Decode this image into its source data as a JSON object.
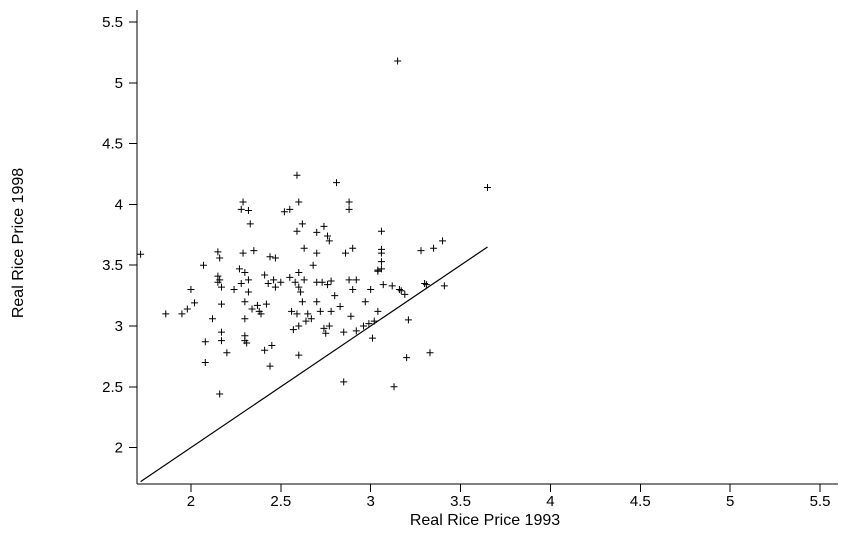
{
  "chart_data": {
    "type": "scatter",
    "xlabel": "Real Rice Price 1993",
    "ylabel": "Real Rice Price 1998",
    "xlim": [
      1.7,
      5.6
    ],
    "ylim": [
      1.7,
      5.6
    ],
    "xticks": [
      2,
      2.5,
      3,
      3.5,
      4,
      4.5,
      5,
      5.5
    ],
    "yticks": [
      2,
      2.5,
      3,
      3.5,
      4,
      4.5,
      5,
      5.5
    ],
    "marker": "+",
    "grid": false,
    "legend": "none",
    "reference_line": {
      "x": [
        1.72,
        3.65
      ],
      "y": [
        1.72,
        3.65
      ]
    },
    "points": [
      [
        1.72,
        3.59
      ],
      [
        1.86,
        3.1
      ],
      [
        1.95,
        3.1
      ],
      [
        1.98,
        3.14
      ],
      [
        2.0,
        3.3
      ],
      [
        2.02,
        3.19
      ],
      [
        2.07,
        3.5
      ],
      [
        2.08,
        2.87
      ],
      [
        2.08,
        2.7
      ],
      [
        2.12,
        3.06
      ],
      [
        2.15,
        3.41
      ],
      [
        2.15,
        3.36
      ],
      [
        2.15,
        3.61
      ],
      [
        2.16,
        3.56
      ],
      [
        2.16,
        3.38
      ],
      [
        2.17,
        3.32
      ],
      [
        2.17,
        2.95
      ],
      [
        2.17,
        2.88
      ],
      [
        2.16,
        2.44
      ],
      [
        2.17,
        3.18
      ],
      [
        2.2,
        2.78
      ],
      [
        2.24,
        3.3
      ],
      [
        2.27,
        3.47
      ],
      [
        2.28,
        3.35
      ],
      [
        2.28,
        3.96
      ],
      [
        2.29,
        4.02
      ],
      [
        2.29,
        3.6
      ],
      [
        2.3,
        3.44
      ],
      [
        2.3,
        3.2
      ],
      [
        2.3,
        3.06
      ],
      [
        2.3,
        2.92
      ],
      [
        2.3,
        2.88
      ],
      [
        2.31,
        2.86
      ],
      [
        2.32,
        3.38
      ],
      [
        2.32,
        3.28
      ],
      [
        2.32,
        3.95
      ],
      [
        2.33,
        3.84
      ],
      [
        2.34,
        3.14
      ],
      [
        2.35,
        3.62
      ],
      [
        2.37,
        3.17
      ],
      [
        2.38,
        3.12
      ],
      [
        2.39,
        3.1
      ],
      [
        2.41,
        3.42
      ],
      [
        2.41,
        2.8
      ],
      [
        2.42,
        3.18
      ],
      [
        2.43,
        3.35
      ],
      [
        2.44,
        3.57
      ],
      [
        2.44,
        2.67
      ],
      [
        2.45,
        2.84
      ],
      [
        2.46,
        3.38
      ],
      [
        2.47,
        3.56
      ],
      [
        2.47,
        3.32
      ],
      [
        2.5,
        3.36
      ],
      [
        2.52,
        3.94
      ],
      [
        2.55,
        3.96
      ],
      [
        2.55,
        3.4
      ],
      [
        2.56,
        3.12
      ],
      [
        2.57,
        2.97
      ],
      [
        2.58,
        3.36
      ],
      [
        2.59,
        3.1
      ],
      [
        2.59,
        3.78
      ],
      [
        2.59,
        4.24
      ],
      [
        2.6,
        4.02
      ],
      [
        2.6,
        3.44
      ],
      [
        2.6,
        3.32
      ],
      [
        2.6,
        3.0
      ],
      [
        2.6,
        2.76
      ],
      [
        2.61,
        3.28
      ],
      [
        2.62,
        3.84
      ],
      [
        2.62,
        3.2
      ],
      [
        2.63,
        3.64
      ],
      [
        2.63,
        3.38
      ],
      [
        2.64,
        3.04
      ],
      [
        2.65,
        3.1
      ],
      [
        2.67,
        3.06
      ],
      [
        2.68,
        3.5
      ],
      [
        2.7,
        3.6
      ],
      [
        2.7,
        3.36
      ],
      [
        2.7,
        3.2
      ],
      [
        2.7,
        3.77
      ],
      [
        2.72,
        3.12
      ],
      [
        2.73,
        3.36
      ],
      [
        2.74,
        3.82
      ],
      [
        2.74,
        2.98
      ],
      [
        2.75,
        2.94
      ],
      [
        2.76,
        3.34
      ],
      [
        2.76,
        3.74
      ],
      [
        2.77,
        3.7
      ],
      [
        2.77,
        3.0
      ],
      [
        2.78,
        3.37
      ],
      [
        2.78,
        3.12
      ],
      [
        2.8,
        3.25
      ],
      [
        2.81,
        4.18
      ],
      [
        2.83,
        3.16
      ],
      [
        2.85,
        2.95
      ],
      [
        2.85,
        2.54
      ],
      [
        2.86,
        3.6
      ],
      [
        2.88,
        3.38
      ],
      [
        2.88,
        3.96
      ],
      [
        2.88,
        4.02
      ],
      [
        2.89,
        3.08
      ],
      [
        2.9,
        3.3
      ],
      [
        2.9,
        3.64
      ],
      [
        2.92,
        3.38
      ],
      [
        2.92,
        2.96
      ],
      [
        2.96,
        3.0
      ],
      [
        2.97,
        3.2
      ],
      [
        2.99,
        3.02
      ],
      [
        3.0,
        3.3
      ],
      [
        3.01,
        2.9
      ],
      [
        3.02,
        3.04
      ],
      [
        3.04,
        3.12
      ],
      [
        3.04,
        3.45
      ],
      [
        3.04,
        3.46
      ],
      [
        3.06,
        3.6
      ],
      [
        3.06,
        3.78
      ],
      [
        3.06,
        3.63
      ],
      [
        3.06,
        3.53
      ],
      [
        3.06,
        3.47
      ],
      [
        3.07,
        3.34
      ],
      [
        3.12,
        3.33
      ],
      [
        3.13,
        2.5
      ],
      [
        3.15,
        5.18
      ],
      [
        3.16,
        3.3
      ],
      [
        3.17,
        3.29
      ],
      [
        3.19,
        3.26
      ],
      [
        3.2,
        2.74
      ],
      [
        3.21,
        3.05
      ],
      [
        3.28,
        3.62
      ],
      [
        3.3,
        3.35
      ],
      [
        3.31,
        3.34
      ],
      [
        3.33,
        2.78
      ],
      [
        3.35,
        3.64
      ],
      [
        3.4,
        3.7
      ],
      [
        3.41,
        3.33
      ],
      [
        3.65,
        4.14
      ]
    ]
  }
}
